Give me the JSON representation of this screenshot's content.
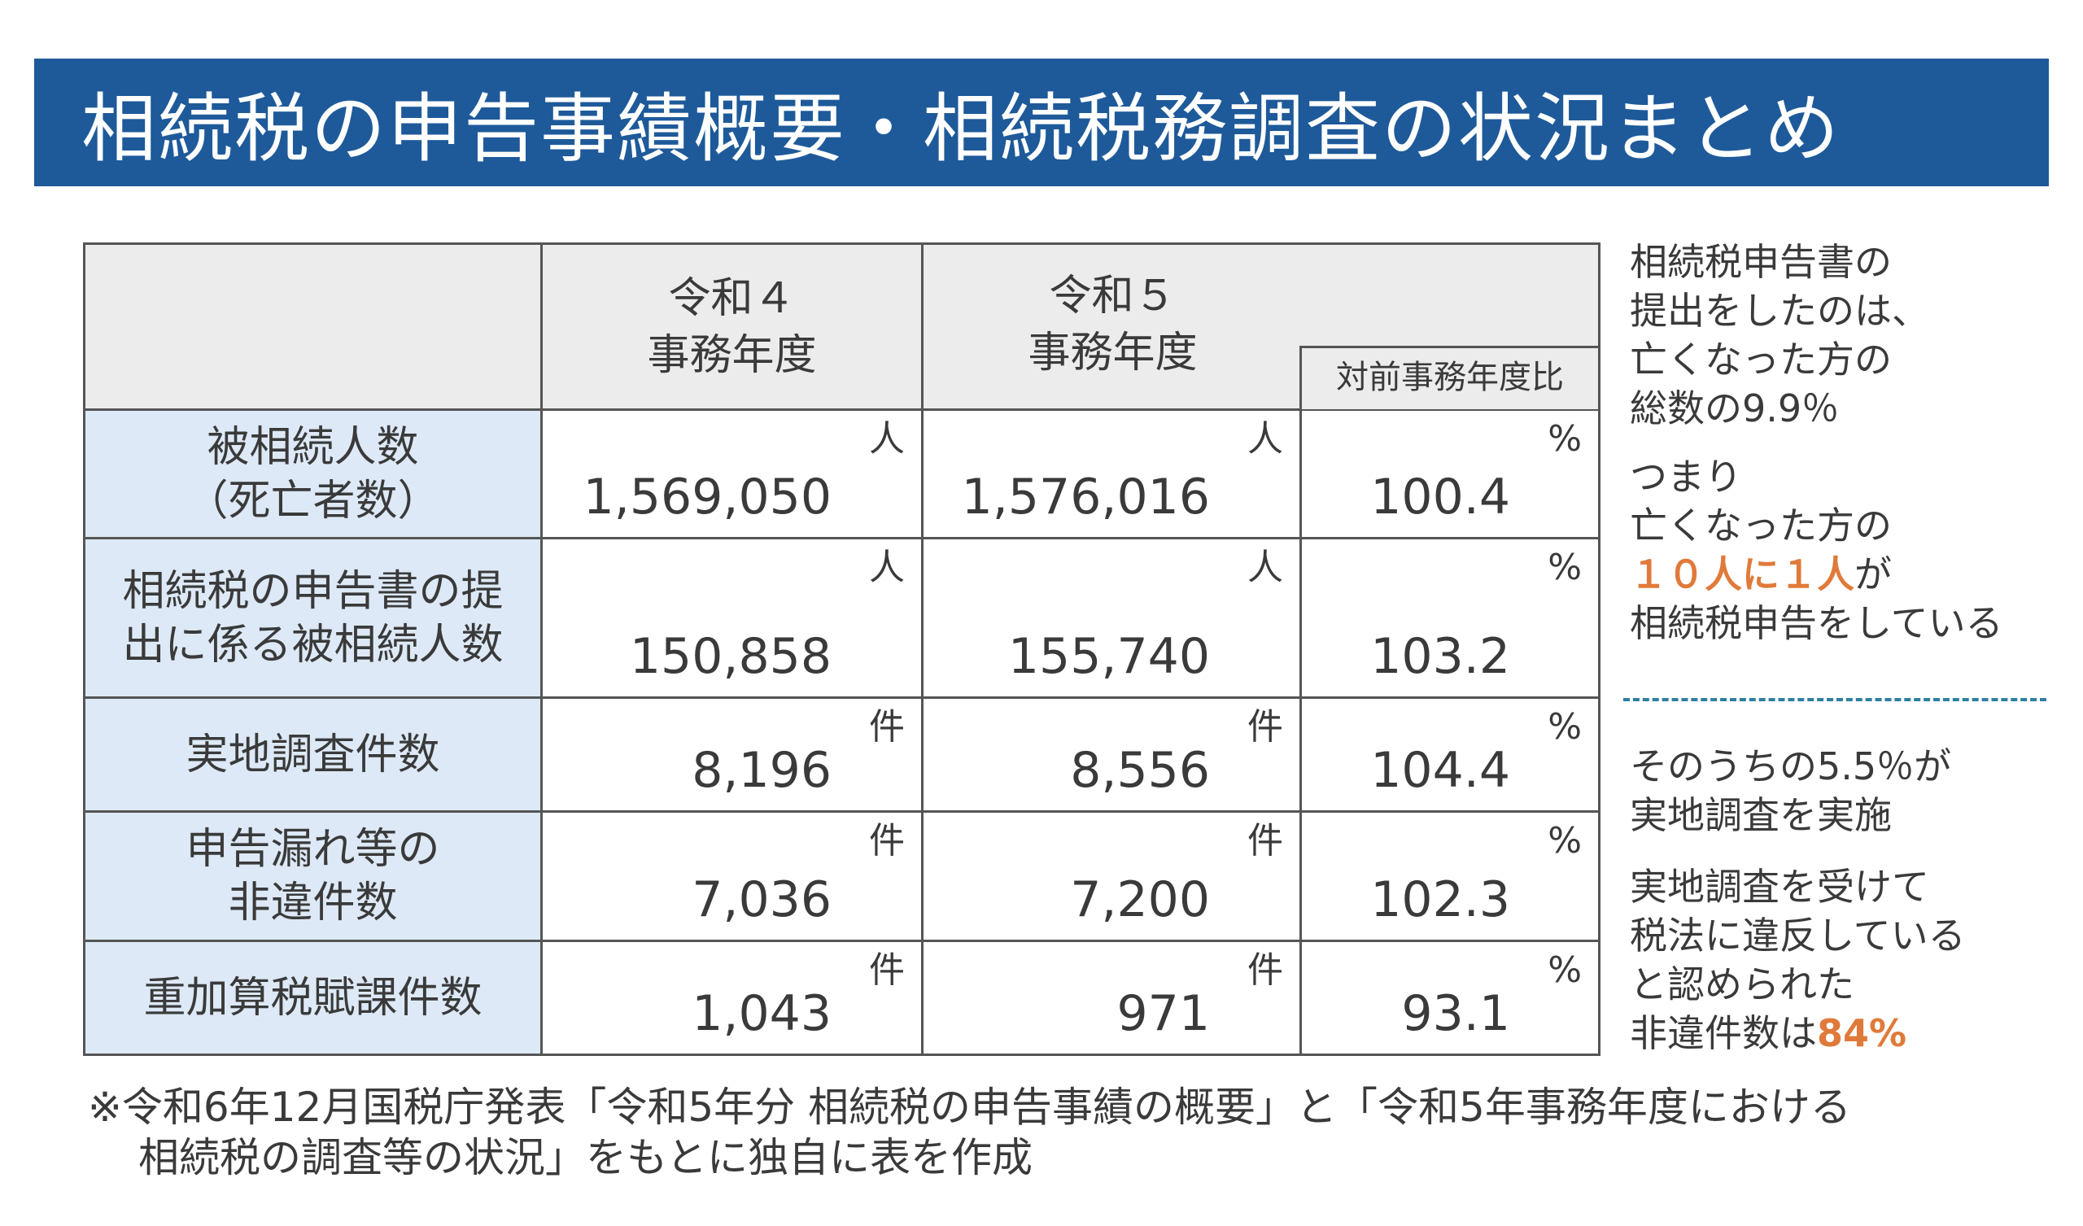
{
  "title": "相続税の申告事績概要・相続税務調査の状況まとめ",
  "table": {
    "col_r4": [
      "令和４",
      "事務年度"
    ],
    "col_r5": [
      "令和５",
      "事務年度"
    ],
    "col_ratio": "対前事務年度比",
    "rows": [
      {
        "label": [
          "被相続人数",
          "（死亡者数）"
        ],
        "unit": "人",
        "r4": "1,569,050",
        "r5": "1,576,016",
        "ratio_unit": "%",
        "ratio": "100.4"
      },
      {
        "label": [
          "相続税の申告書の提",
          "出に係る被相続人数"
        ],
        "unit": "人",
        "r4": "150,858",
        "r5": "155,740",
        "ratio_unit": "%",
        "ratio": "103.2"
      },
      {
        "label": [
          "実地調査件数"
        ],
        "unit": "件",
        "r4": "8,196",
        "r5": "8,556",
        "ratio_unit": "%",
        "ratio": "104.4"
      },
      {
        "label": [
          "申告漏れ等の",
          "非違件数"
        ],
        "unit": "件",
        "r4": "7,036",
        "r5": "7,200",
        "ratio_unit": "%",
        "ratio": "102.3"
      },
      {
        "label": [
          "重加算税賦課件数"
        ],
        "unit": "件",
        "r4": "1,043",
        "r5": "971",
        "ratio_unit": "%",
        "ratio": "93.1"
      }
    ]
  },
  "notes": {
    "block1": [
      "相続税申告書の",
      "提出をしたのは、",
      "亡くなった方の",
      "総数の9.9％"
    ],
    "block2_a": [
      "つまり",
      "亡くなった方の"
    ],
    "block2_highlight": "１０人に１人",
    "block2_highlight_suffix": "が",
    "block2_b": "相続税申告をしている",
    "block3": [
      "そのうちの5.5％が",
      "実地調査を実施"
    ],
    "block4": [
      "実地調査を受けて",
      "税法に違反している",
      "と認められた"
    ],
    "block4_last_prefix": "非違件数は",
    "block4_last_highlight": "84%"
  },
  "footnote": [
    "※令和6年12月国税庁発表「令和5年分 相続税の申告事績の概要」と「令和5年事務年度における",
    "相続税の調査等の状況」をもとに独自に表を作成"
  ],
  "colors": {
    "title_bg": "#1e5a9a",
    "label_bg": "#dde9f6",
    "header_bg": "#ececec",
    "highlight": "#e07a3a",
    "divider": "#2e7fa0"
  }
}
